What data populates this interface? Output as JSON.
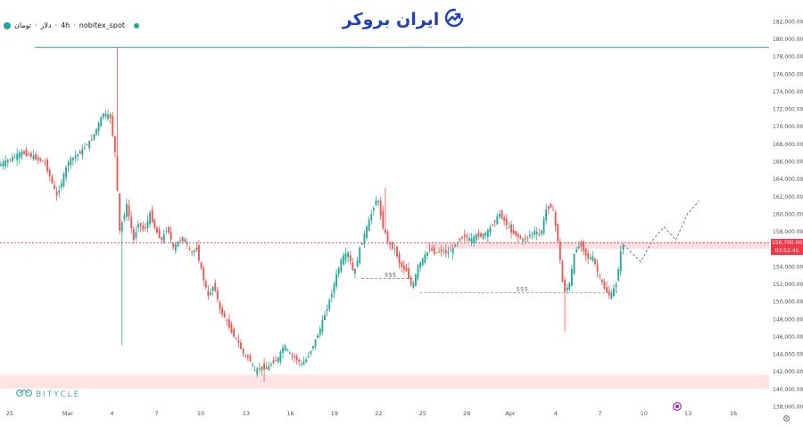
{
  "symbol": {
    "currency": "تومان",
    "unit": "دلار",
    "timeframe": "4h",
    "exchange": "nobitex_spot",
    "separator": "·"
  },
  "brand": {
    "name": "ایران بروکر",
    "icon": "trend-arrow-logo-icon"
  },
  "watermark": {
    "text": "BITYCLE",
    "icon": "bicycle-logo-icon"
  },
  "current_price": {
    "price": "156,700.00",
    "countdown": "03:52:45"
  },
  "annotations": {
    "liquidity_left": "$$$",
    "liquidity_right": "$$$"
  },
  "colors": {
    "up": "#26a69a",
    "down": "#ef5350",
    "resistance": "#26a69a",
    "zone": "#ffcdd2",
    "current": "#f23645",
    "projection": "#5b6fd6"
  },
  "chart_data": {
    "type": "candlestick",
    "title": "",
    "ylim": [
      138000,
      183000
    ],
    "y_ticks": [
      "182,000.00",
      "180,000.00",
      "178,000.00",
      "176,000.00",
      "174,000.00",
      "172,000.00",
      "170,000.00",
      "168,000.00",
      "166,000.00",
      "164,000.00",
      "162,000.00",
      "160,000.00",
      "158,000.00",
      "156,000.00",
      "154,000.00",
      "152,000.00",
      "150,000.00",
      "148,000.00",
      "146,000.00",
      "144,000.00",
      "142,000.00",
      "140,000.00",
      "138,000.00"
    ],
    "x_ticks": [
      "25",
      "Mar",
      "4",
      "7",
      "10",
      "13",
      "16",
      "19",
      "22",
      "25",
      "28",
      "Apr",
      "4",
      "7",
      "10",
      "13",
      "16"
    ],
    "resistance_level": 179000,
    "support_zone": [
      140000,
      141600
    ],
    "supply_zone": [
      156000,
      156800
    ],
    "current_price": 156700,
    "liquidity_levels": [
      152600,
      151000
    ],
    "price_path": [
      [
        0,
        165500
      ],
      [
        2,
        167000
      ],
      [
        3,
        166500
      ],
      [
        4,
        165800
      ],
      [
        5,
        162000
      ],
      [
        6,
        166000
      ],
      [
        7,
        167000
      ],
      [
        8,
        168500
      ],
      [
        9,
        171500
      ],
      [
        9.6,
        171000
      ],
      [
        10,
        167000
      ],
      [
        10.4,
        158000
      ],
      [
        11,
        161000
      ],
      [
        11.6,
        157000
      ],
      [
        12,
        159000
      ],
      [
        12.5,
        158000
      ],
      [
        13,
        160000
      ],
      [
        13.5,
        158000
      ],
      [
        14,
        157000
      ],
      [
        14.5,
        158500
      ],
      [
        15,
        156000
      ],
      [
        15.5,
        157000
      ],
      [
        16,
        157000
      ],
      [
        16.5,
        155500
      ],
      [
        17,
        156000
      ],
      [
        17.5,
        153000
      ],
      [
        18,
        150500
      ],
      [
        18.5,
        152000
      ],
      [
        19,
        149000
      ],
      [
        19.5,
        148000
      ],
      [
        20,
        146500
      ],
      [
        20.5,
        145500
      ],
      [
        21,
        144000
      ],
      [
        21.5,
        143500
      ],
      [
        22,
        142000
      ],
      [
        22.5,
        142500
      ],
      [
        23,
        142300
      ],
      [
        23.5,
        143000
      ],
      [
        24,
        143500
      ],
      [
        24.5,
        145000
      ],
      [
        25,
        144000
      ],
      [
        25.5,
        143500
      ],
      [
        26,
        142800
      ],
      [
        26.5,
        143500
      ],
      [
        27,
        145000
      ],
      [
        27.5,
        146500
      ],
      [
        28,
        148500
      ],
      [
        28.5,
        150500
      ],
      [
        29,
        153000
      ],
      [
        29.5,
        155000
      ],
      [
        30,
        155500
      ],
      [
        30.5,
        153000
      ],
      [
        31,
        156000
      ],
      [
        31.5,
        158000
      ],
      [
        32,
        160000
      ],
      [
        32.5,
        162000
      ],
      [
        33,
        158500
      ],
      [
        33.5,
        156500
      ],
      [
        34,
        156000
      ],
      [
        34.5,
        154000
      ],
      [
        35,
        153500
      ],
      [
        35.5,
        151500
      ],
      [
        36,
        154000
      ],
      [
        36.5,
        155000
      ],
      [
        37,
        156000
      ],
      [
        37.5,
        155500
      ],
      [
        38,
        155800
      ],
      [
        38.5,
        155500
      ],
      [
        39,
        156000
      ],
      [
        39.5,
        157000
      ],
      [
        40,
        157500
      ],
      [
        40.5,
        157000
      ],
      [
        41,
        157500
      ],
      [
        41.5,
        157500
      ],
      [
        42,
        158000
      ],
      [
        42.5,
        159000
      ],
      [
        43,
        160000
      ],
      [
        43.5,
        159000
      ],
      [
        44,
        158000
      ],
      [
        44.5,
        157500
      ],
      [
        45,
        157000
      ],
      [
        45.5,
        157500
      ],
      [
        46,
        158000
      ],
      [
        46.5,
        157500
      ],
      [
        47,
        160500
      ],
      [
        47.5,
        161000
      ],
      [
        48,
        157000
      ],
      [
        48.5,
        151000
      ],
      [
        49,
        152000
      ],
      [
        49.5,
        156000
      ],
      [
        50,
        156500
      ],
      [
        50.5,
        155000
      ],
      [
        51,
        155000
      ],
      [
        51.5,
        153000
      ],
      [
        52,
        151500
      ],
      [
        52.5,
        150500
      ],
      [
        53,
        152000
      ],
      [
        53.5,
        156500
      ]
    ],
    "projection": [
      [
        53.5,
        156500
      ],
      [
        55,
        154500
      ],
      [
        56,
        157000
      ],
      [
        57,
        158500
      ],
      [
        58,
        157000
      ],
      [
        59,
        160000
      ],
      [
        60,
        161500
      ]
    ]
  }
}
